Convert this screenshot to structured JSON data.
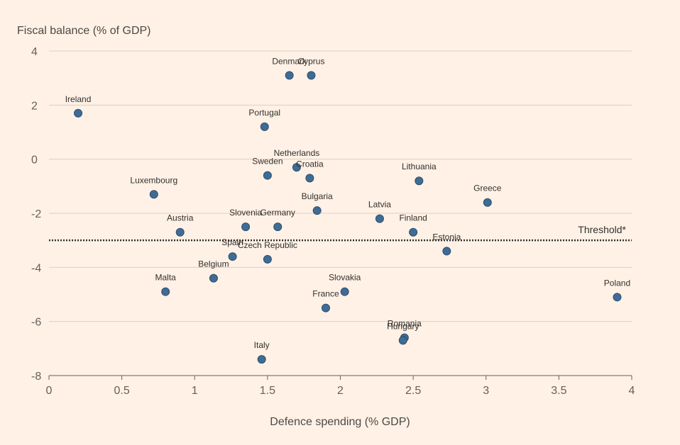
{
  "chart_data": {
    "type": "scatter",
    "ylabel": "Fiscal balance (% of GDP)",
    "xlabel": "Defence spending (% GDP)",
    "xlim": [
      0,
      4
    ],
    "ylim": [
      -8,
      4
    ],
    "xticks": [
      0,
      0.5,
      1,
      1.5,
      2,
      2.5,
      3,
      3.5,
      4
    ],
    "xtick_labels": [
      "0",
      "0.5",
      "1",
      "1.5",
      "2",
      "2.5",
      "3",
      "3.5",
      "4"
    ],
    "yticks": [
      4,
      2,
      0,
      -2,
      -4,
      -6,
      -8
    ],
    "ytick_labels": [
      "4",
      "2",
      "0",
      "-2",
      "-4",
      "-6",
      "-8"
    ],
    "grid": "horizontal",
    "threshold": {
      "label": "Threshold*",
      "value": -3
    },
    "colors": {
      "background": "#FFF1E5",
      "point_fill": "#3F6C94",
      "point_stroke": "#2C4F70",
      "grid": "#DCCFC3",
      "threshold_line": "#33302E"
    },
    "points": [
      {
        "label": "Ireland",
        "x": 0.2,
        "y": 1.7
      },
      {
        "label": "Denmark",
        "x": 1.65,
        "y": 3.1
      },
      {
        "label": "Cyprus",
        "x": 1.8,
        "y": 3.1
      },
      {
        "label": "Portugal",
        "x": 1.48,
        "y": 1.2
      },
      {
        "label": "Netherlands",
        "x": 1.7,
        "y": -0.3
      },
      {
        "label": "Sweden",
        "x": 1.5,
        "y": -0.6
      },
      {
        "label": "Croatia",
        "x": 1.79,
        "y": -0.7
      },
      {
        "label": "Lithuania",
        "x": 2.54,
        "y": -0.8
      },
      {
        "label": "Luxembourg",
        "x": 0.72,
        "y": -1.3
      },
      {
        "label": "Greece",
        "x": 3.01,
        "y": -1.6
      },
      {
        "label": "Bulgaria",
        "x": 1.84,
        "y": -1.9
      },
      {
        "label": "Latvia",
        "x": 2.27,
        "y": -2.2
      },
      {
        "label": "Austria",
        "x": 0.9,
        "y": -2.7
      },
      {
        "label": "Slovenia",
        "x": 1.35,
        "y": -2.5
      },
      {
        "label": "Germany",
        "x": 1.57,
        "y": -2.5
      },
      {
        "label": "Finland",
        "x": 2.5,
        "y": -2.7
      },
      {
        "label": "Estonia",
        "x": 2.73,
        "y": -3.4
      },
      {
        "label": "Spain",
        "x": 1.26,
        "y": -3.6
      },
      {
        "label": "Czech Republic",
        "x": 1.5,
        "y": -3.7
      },
      {
        "label": "Belgium",
        "x": 1.13,
        "y": -4.4
      },
      {
        "label": "Malta",
        "x": 0.8,
        "y": -4.9
      },
      {
        "label": "Slovakia",
        "x": 2.03,
        "y": -4.9
      },
      {
        "label": "France",
        "x": 1.9,
        "y": -5.5
      },
      {
        "label": "Poland",
        "x": 3.9,
        "y": -5.1
      },
      {
        "label": "Romania",
        "x": 2.44,
        "y": -6.6
      },
      {
        "label": "Hungary",
        "x": 2.43,
        "y": -6.7
      },
      {
        "label": "Italy",
        "x": 1.46,
        "y": -7.4
      }
    ]
  }
}
